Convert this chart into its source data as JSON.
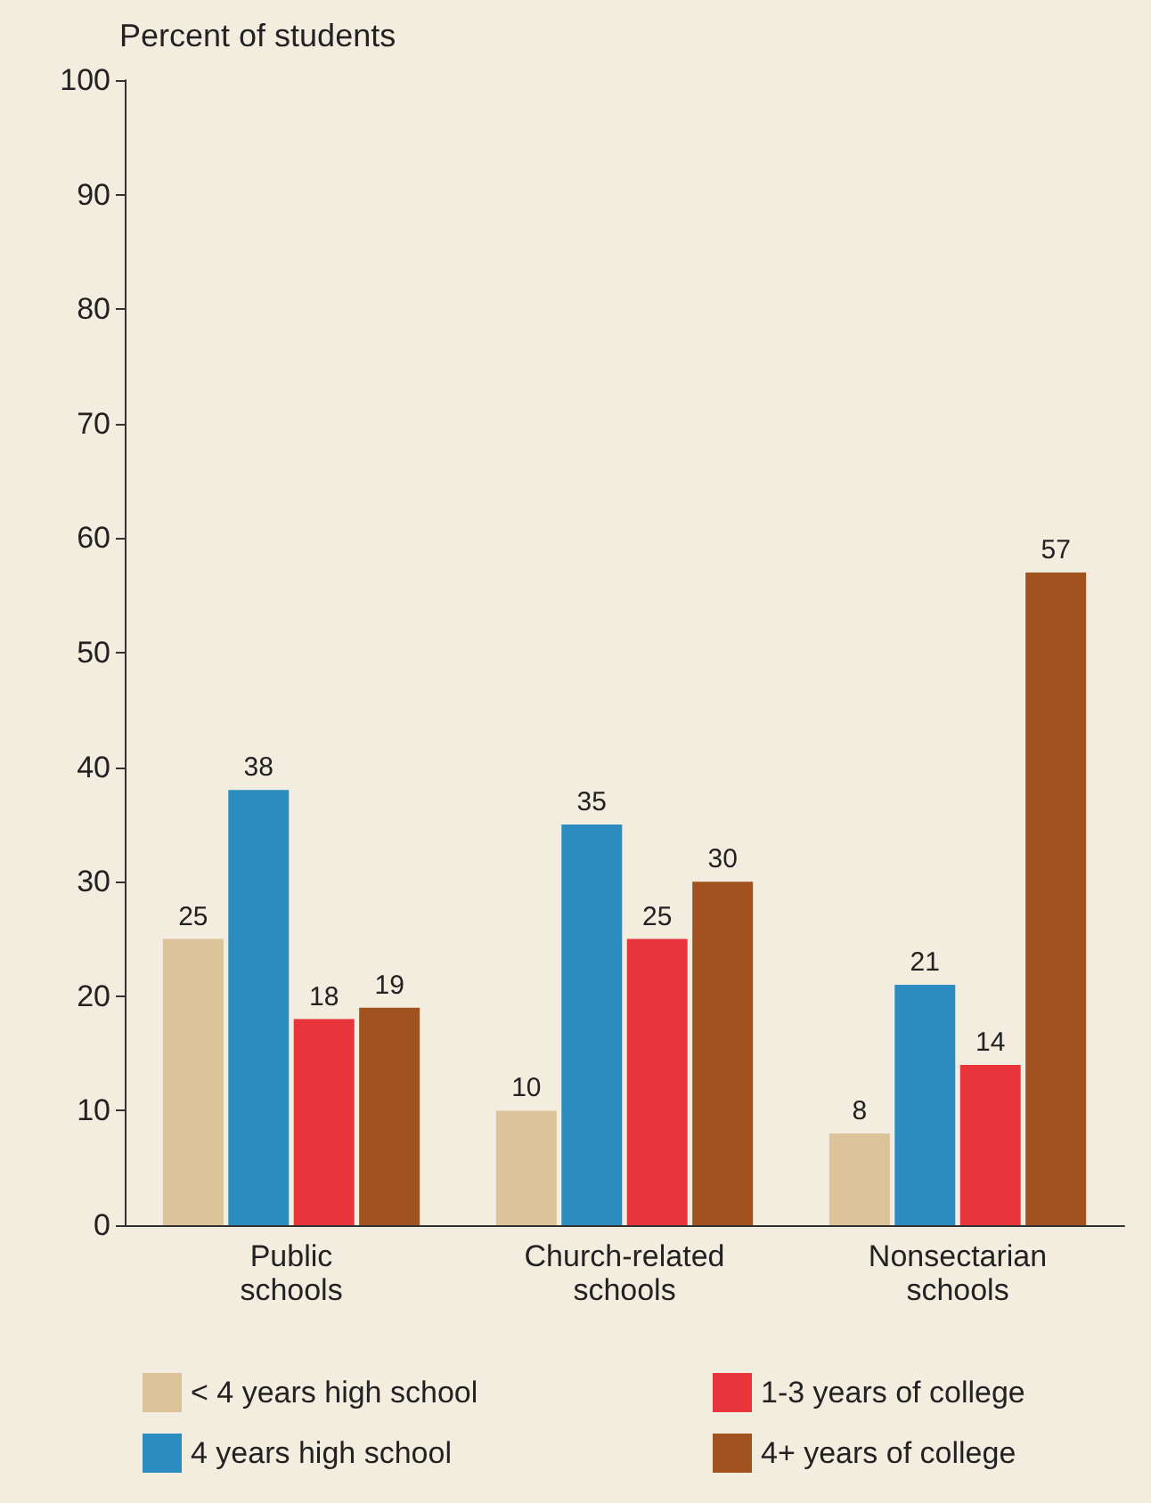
{
  "chart_data": {
    "type": "bar",
    "ylabel": "Percent of students",
    "categories": [
      "Public\nschools",
      "Church-related\nschools",
      "Nonsectarian\nschools"
    ],
    "series": [
      {
        "name": "< 4 years high school",
        "color": "#dcc39a",
        "values": [
          25,
          10,
          8
        ]
      },
      {
        "name": "4 years high school",
        "color": "#2b8cc0",
        "values": [
          38,
          35,
          21
        ]
      },
      {
        "name": "1-3 years of college",
        "color": "#e8353b",
        "values": [
          18,
          25,
          14
        ]
      },
      {
        "name": "4+ years of college",
        "color": "#a0521f",
        "values": [
          19,
          30,
          57
        ]
      }
    ],
    "ylim": [
      0,
      100
    ],
    "yticks": [
      0,
      10,
      20,
      30,
      40,
      50,
      60,
      70,
      80,
      90,
      100
    ],
    "data_labels": true,
    "legend": "bottom"
  }
}
